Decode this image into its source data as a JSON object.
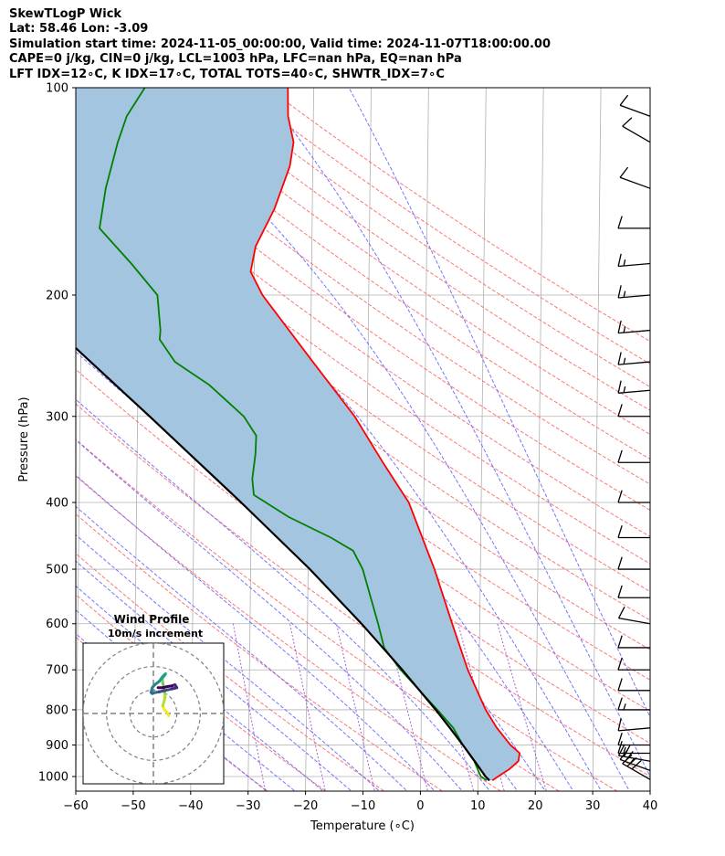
{
  "header": {
    "lines": [
      "SkewTLogP Wick",
      "Lat: 58.46   Lon: -3.09",
      "Simulation start time: 2024-11-05_00:00:00, Valid time: 2024-11-07T18:00:00.00",
      "CAPE=0 j/kg, CIN=0 j/kg, LCL=1003 hPa, LFC=nan hPa, EQ=nan hPa",
      "LFT IDX=12∘C, K IDX=17∘C, TOTAL TOTS=40∘C, SHWTR_IDX=7∘C"
    ]
  },
  "chart_data": [
    {
      "type": "skewt",
      "xlabel": "Temperature (∘C)",
      "ylabel": "Pressure (hPa)",
      "xlim": [
        -60,
        40
      ],
      "ylim": [
        1050,
        100
      ],
      "x_ticks": [
        -60,
        -50,
        -40,
        -30,
        -20,
        -10,
        0,
        10,
        20,
        30,
        40
      ],
      "y_ticks": [
        1000,
        900,
        800,
        700,
        600,
        500,
        400,
        300,
        200,
        100
      ],
      "y_scale": "log",
      "grid": true,
      "colors": {
        "temperature": "#ff0000",
        "dewpoint": "#008000",
        "parcel": "#000000",
        "cape_fill": "#a3c5e0",
        "dry_adiabats": "#ff6666",
        "moist_adiabats": "#6666ff",
        "mixing_ratio": "#9933cc",
        "isotherms": "#b0b0b0"
      },
      "series": [
        {
          "key": "temperature",
          "points": [
            [
              1013,
              12.5
            ],
            [
              1000,
              13.5
            ],
            [
              975,
              15.5
            ],
            [
              950,
              17.0
            ],
            [
              925,
              17.2
            ],
            [
              900,
              15.6
            ],
            [
              850,
              13.2
            ],
            [
              800,
              11.2
            ],
            [
              700,
              8.0
            ],
            [
              600,
              5.2
            ],
            [
              500,
              2.0
            ],
            [
              400,
              -2.6
            ],
            [
              350,
              -7.2
            ],
            [
              300,
              -12.2
            ],
            [
              250,
              -19.6
            ],
            [
              200,
              -28.5
            ],
            [
              185,
              -30.6
            ],
            [
              170,
              -29.8
            ],
            [
              150,
              -26.6
            ],
            [
              130,
              -24.0
            ],
            [
              120,
              -23.4
            ],
            [
              110,
              -24.4
            ],
            [
              100,
              -24.5
            ]
          ]
        },
        {
          "key": "dewpoint",
          "points": [
            [
              1013,
              11.5
            ],
            [
              1000,
              10.5
            ],
            [
              950,
              9.3
            ],
            [
              900,
              7.3
            ],
            [
              850,
              5.6
            ],
            [
              800,
              2.8
            ],
            [
              700,
              -3.7
            ],
            [
              650,
              -6.6
            ],
            [
              600,
              -7.7
            ],
            [
              500,
              -10.5
            ],
            [
              470,
              -12.2
            ],
            [
              450,
              -16.1
            ],
            [
              420,
              -23.5
            ],
            [
              390,
              -29.6
            ],
            [
              370,
              -29.9
            ],
            [
              340,
              -29.4
            ],
            [
              320,
              -29.3
            ],
            [
              300,
              -31.5
            ],
            [
              270,
              -37.6
            ],
            [
              250,
              -43.6
            ],
            [
              232,
              -46.3
            ],
            [
              225,
              -46.2
            ],
            [
              200,
              -46.8
            ],
            [
              180,
              -51.4
            ],
            [
              160,
              -57.0
            ],
            [
              140,
              -56.0
            ],
            [
              120,
              -54.0
            ],
            [
              110,
              -52.5
            ],
            [
              100,
              -49.4
            ]
          ]
        },
        {
          "key": "parcel",
          "points": [
            [
              1013,
              12.0
            ],
            [
              1000,
              11.3
            ],
            [
              950,
              9.4
            ],
            [
              900,
              7.3
            ],
            [
              850,
              5.0
            ],
            [
              800,
              2.5
            ],
            [
              700,
              -3.4
            ],
            [
              600,
              -10.6
            ],
            [
              500,
              -19.7
            ],
            [
              400,
              -31.8
            ],
            [
              300,
              -47.9
            ],
            [
              250,
              -58.3
            ],
            [
              200,
              -70.9
            ],
            [
              150,
              -87.0
            ],
            [
              100,
              -108.5
            ]
          ]
        }
      ],
      "wind_barbs": [
        {
          "p": 1010,
          "speed": 30,
          "dir": 300
        },
        {
          "p": 980,
          "speed": 25,
          "dir": 290
        },
        {
          "p": 950,
          "speed": 20,
          "dir": 280
        },
        {
          "p": 925,
          "speed": 15,
          "dir": 270
        },
        {
          "p": 900,
          "speed": 10,
          "dir": 270
        },
        {
          "p": 850,
          "speed": 10,
          "dir": 265
        },
        {
          "p": 800,
          "speed": 15,
          "dir": 270
        },
        {
          "p": 750,
          "speed": 10,
          "dir": 270
        },
        {
          "p": 700,
          "speed": 10,
          "dir": 270
        },
        {
          "p": 650,
          "speed": 10,
          "dir": 270
        },
        {
          "p": 600,
          "speed": 10,
          "dir": 280
        },
        {
          "p": 550,
          "speed": 10,
          "dir": 270
        },
        {
          "p": 500,
          "speed": 10,
          "dir": 270
        },
        {
          "p": 450,
          "speed": 10,
          "dir": 270
        },
        {
          "p": 400,
          "speed": 10,
          "dir": 270
        },
        {
          "p": 350,
          "speed": 10,
          "dir": 270
        },
        {
          "p": 300,
          "speed": 10,
          "dir": 270
        },
        {
          "p": 275,
          "speed": 15,
          "dir": 265
        },
        {
          "p": 250,
          "speed": 15,
          "dir": 265
        },
        {
          "p": 225,
          "speed": 15,
          "dir": 265
        },
        {
          "p": 200,
          "speed": 15,
          "dir": 265
        },
        {
          "p": 180,
          "speed": 15,
          "dir": 265
        },
        {
          "p": 160,
          "speed": 10,
          "dir": 270
        },
        {
          "p": 140,
          "speed": 10,
          "dir": 290
        },
        {
          "p": 120,
          "speed": 10,
          "dir": 300
        },
        {
          "p": 110,
          "speed": 10,
          "dir": 290
        }
      ]
    },
    {
      "type": "hodograph",
      "title": "Wind Profile",
      "subtitle": "10m/s increment",
      "rings": [
        10,
        20,
        30
      ],
      "range": [
        -30,
        30
      ],
      "points": [
        [
          6.5,
          -1.0
        ],
        [
          5.8,
          0.5
        ],
        [
          4.5,
          1.8
        ],
        [
          4.0,
          3.2
        ],
        [
          4.5,
          5.0
        ],
        [
          5.0,
          7.0
        ],
        [
          4.8,
          9.0
        ],
        [
          4.5,
          11.0
        ],
        [
          4.0,
          13.0
        ],
        [
          3.8,
          15.0
        ],
        [
          5.0,
          16.5
        ],
        [
          5.2,
          17.0
        ],
        [
          4.8,
          16.6
        ],
        [
          4.0,
          15.8
        ],
        [
          3.4,
          15.0
        ],
        [
          2.5,
          13.7
        ],
        [
          0.5,
          12.2
        ],
        [
          -0.5,
          11.0
        ],
        [
          -1.0,
          9.0
        ],
        [
          -0.5,
          8.5
        ],
        [
          1.0,
          9.0
        ],
        [
          2.5,
          9.2
        ],
        [
          3.5,
          9.5
        ],
        [
          5.0,
          9.8
        ],
        [
          8.0,
          10.5
        ],
        [
          10.0,
          11.0
        ],
        [
          9.2,
          12.3
        ],
        [
          8.0,
          11.8
        ],
        [
          6.0,
          11.5
        ],
        [
          4.0,
          11.0
        ],
        [
          2.0,
          11.0
        ]
      ]
    }
  ]
}
